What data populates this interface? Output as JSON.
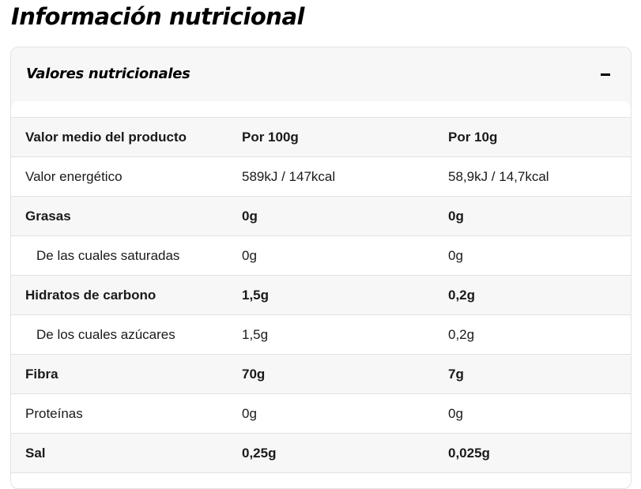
{
  "page": {
    "title": "Información nutricional"
  },
  "panel": {
    "title": "Valores nutricionales",
    "toggle_state": "expanded"
  },
  "table": {
    "header": [
      "Valor medio del producto",
      "Por 100g",
      "Por 10g"
    ],
    "rows": [
      {
        "label": "Valor energético",
        "per100": "589kJ / 147kcal",
        "per10": "58,9kJ / 14,7kcal"
      },
      {
        "label": "Grasas",
        "per100": "0g",
        "per10": "0g"
      },
      {
        "label": "De las cuales saturadas",
        "per100": "0g",
        "per10": "0g"
      },
      {
        "label": "Hidratos de carbono",
        "per100": "1,5g",
        "per10": "0,2g"
      },
      {
        "label": "De los cuales azúcares",
        "per100": "1,5g",
        "per10": "0,2g"
      },
      {
        "label": "Fibra",
        "per100": "70g",
        "per10": "7g"
      },
      {
        "label": "Proteínas",
        "per100": "0g",
        "per10": "0g"
      },
      {
        "label": "Sal",
        "per100": "0,25g",
        "per10": "0,025g"
      }
    ]
  },
  "colors": {
    "text": "#1a1a1a",
    "shaded_row": "#f7f7f7",
    "border": "#e1e1e1"
  }
}
